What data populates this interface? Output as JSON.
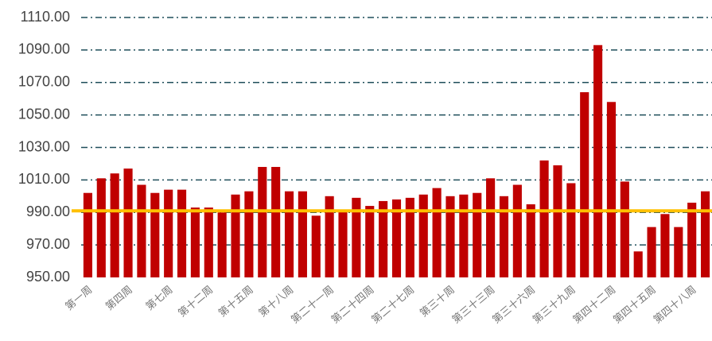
{
  "chart_data": {
    "type": "bar",
    "categories": [
      "第一周",
      null,
      null,
      "第四周",
      null,
      null,
      "第七周",
      null,
      null,
      "第十二周",
      null,
      null,
      "第十五周",
      null,
      null,
      "第十八周",
      null,
      null,
      "第二十一周",
      null,
      null,
      "第二十四周",
      null,
      null,
      "第二十七周",
      null,
      null,
      "第三十周",
      null,
      null,
      "第三十三周",
      null,
      null,
      "第三十六周",
      null,
      null,
      "第三十九周",
      null,
      null,
      "第四十二周",
      null,
      null,
      "第四十五周",
      null,
      null,
      "第四十八周",
      null
    ],
    "values": [
      1002,
      1011,
      1014,
      1017,
      1007,
      1002,
      1004,
      1004,
      993,
      993,
      990,
      1001,
      1003,
      1018,
      1018,
      1003,
      1003,
      988,
      1000,
      991,
      999,
      994,
      997,
      998,
      999,
      1001,
      1005,
      1000,
      1001,
      1002,
      1011,
      1000,
      1007,
      995,
      1022,
      1019,
      1008,
      1064,
      1093,
      1058,
      1009,
      966,
      981,
      989,
      981,
      996,
      1003
    ],
    "color": "#c00000",
    "reference_line": {
      "value": 991,
      "color": "#ffc000"
    },
    "ylim": [
      950,
      1110
    ],
    "yticks": [
      {
        "value": 950,
        "label": "950.00"
      },
      {
        "value": 970,
        "label": "970.00"
      },
      {
        "value": 990,
        "label": "990.00"
      },
      {
        "value": 1010,
        "label": "1010.00"
      },
      {
        "value": 1030,
        "label": "1030.00"
      },
      {
        "value": 1050,
        "label": "1050.00"
      },
      {
        "value": 1070,
        "label": "1070.00"
      },
      {
        "value": 1090,
        "label": "1090.00"
      },
      {
        "value": 1110,
        "label": "1110.00"
      }
    ],
    "grid": true
  }
}
